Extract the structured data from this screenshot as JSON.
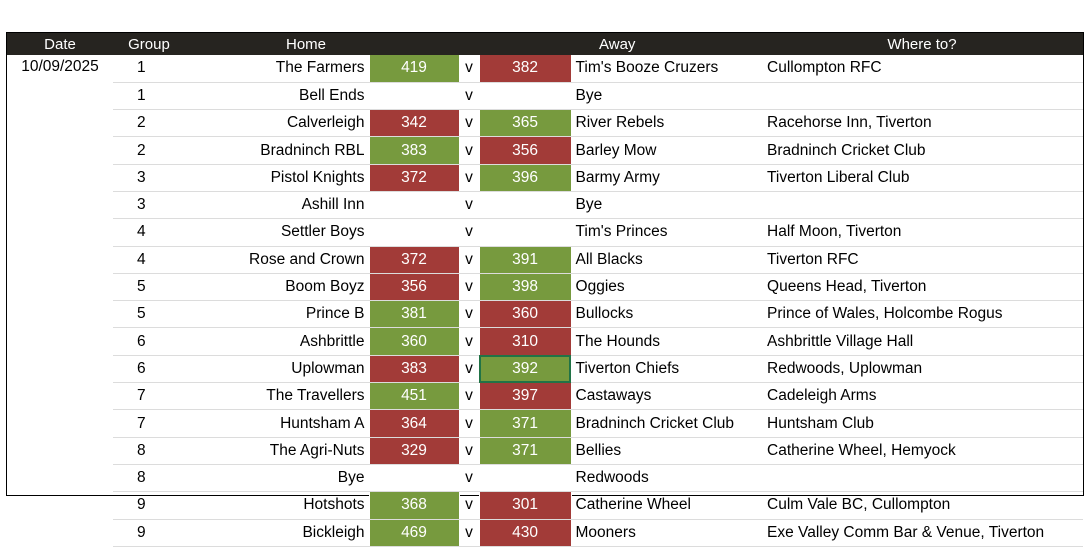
{
  "headers": {
    "date": "Date",
    "group": "Group",
    "home": "Home",
    "away": "Away",
    "where": "Where to?"
  },
  "date": "10/09/2025",
  "colors": {
    "win": "#779a3e",
    "loss": "#a23b38",
    "header": "#262420"
  },
  "matches": [
    {
      "group": "1",
      "home": "The Farmers",
      "home_score": "419",
      "v": "v",
      "away_score": "382",
      "away": "Tim's Booze Cruzers",
      "where": "Cullompton RFC",
      "winner": "home"
    },
    {
      "group": "1",
      "home": "Bell Ends",
      "home_score": "",
      "v": "v",
      "away_score": "",
      "away": "Bye",
      "where": "",
      "winner": ""
    },
    {
      "group": "2",
      "home": "Calverleigh",
      "home_score": "342",
      "v": "v",
      "away_score": "365",
      "away": "River Rebels",
      "where": "Racehorse Inn, Tiverton",
      "winner": "away"
    },
    {
      "group": "2",
      "home": "Bradninch RBL",
      "home_score": "383",
      "v": "v",
      "away_score": "356",
      "away": "Barley Mow",
      "where": "Bradninch Cricket Club",
      "winner": "home"
    },
    {
      "group": "3",
      "home": "Pistol Knights",
      "home_score": "372",
      "v": "v",
      "away_score": "396",
      "away": "Barmy Army",
      "where": "Tiverton Liberal Club",
      "winner": "away"
    },
    {
      "group": "3",
      "home": "Ashill Inn",
      "home_score": "",
      "v": "v",
      "away_score": "",
      "away": "Bye",
      "where": "",
      "winner": ""
    },
    {
      "group": "4",
      "home": "Settler Boys",
      "home_score": "",
      "v": "v",
      "away_score": "",
      "away": "Tim's Princes",
      "where": "Half Moon, Tiverton",
      "winner": ""
    },
    {
      "group": "4",
      "home": "Rose and Crown",
      "home_score": "372",
      "v": "v",
      "away_score": "391",
      "away": "All Blacks",
      "where": "Tiverton RFC",
      "winner": "away"
    },
    {
      "group": "5",
      "home": "Boom Boyz",
      "home_score": "356",
      "v": "v",
      "away_score": "398",
      "away": "Oggies",
      "where": "Queens Head, Tiverton",
      "winner": "away"
    },
    {
      "group": "5",
      "home": "Prince B",
      "home_score": "381",
      "v": "v",
      "away_score": "360",
      "away": "Bullocks",
      "where": "Prince of Wales, Holcombe Rogus",
      "winner": "home"
    },
    {
      "group": "6",
      "home": "Ashbrittle",
      "home_score": "360",
      "v": "v",
      "away_score": "310",
      "away": "The Hounds",
      "where": "Ashbrittle Village Hall",
      "winner": "home"
    },
    {
      "group": "6",
      "home": "Uplowman",
      "home_score": "383",
      "v": "v",
      "away_score": "392",
      "away": "Tiverton Chiefs",
      "where": "Redwoods, Uplowman",
      "winner": "away",
      "selected": true
    },
    {
      "group": "7",
      "home": "The Travellers",
      "home_score": "451",
      "v": "v",
      "away_score": "397",
      "away": "Castaways",
      "where": "Cadeleigh Arms",
      "winner": "home"
    },
    {
      "group": "7",
      "home": "Huntsham A",
      "home_score": "364",
      "v": "v",
      "away_score": "371",
      "away": "Bradninch Cricket Club",
      "where": "Huntsham Club",
      "winner": "away"
    },
    {
      "group": "8",
      "home": "The Agri-Nuts",
      "home_score": "329",
      "v": "v",
      "away_score": "371",
      "away": "Bellies",
      "where": "Catherine Wheel, Hemyock",
      "winner": "away"
    },
    {
      "group": "8",
      "home": "Bye",
      "home_score": "",
      "v": "v",
      "away_score": "",
      "away": "Redwoods",
      "where": "",
      "winner": ""
    },
    {
      "group": "9",
      "home": "Hotshots",
      "home_score": "368",
      "v": "v",
      "away_score": "301",
      "away": "Catherine Wheel",
      "where": "Culm Vale BC, Cullompton",
      "winner": "home"
    },
    {
      "group": "9",
      "home": "Bickleigh",
      "home_score": "469",
      "v": "v",
      "away_score": "430",
      "away": "Mooners",
      "where": "Exe Valley Comm Bar & Venue, Tiverton",
      "winner": "home"
    }
  ]
}
